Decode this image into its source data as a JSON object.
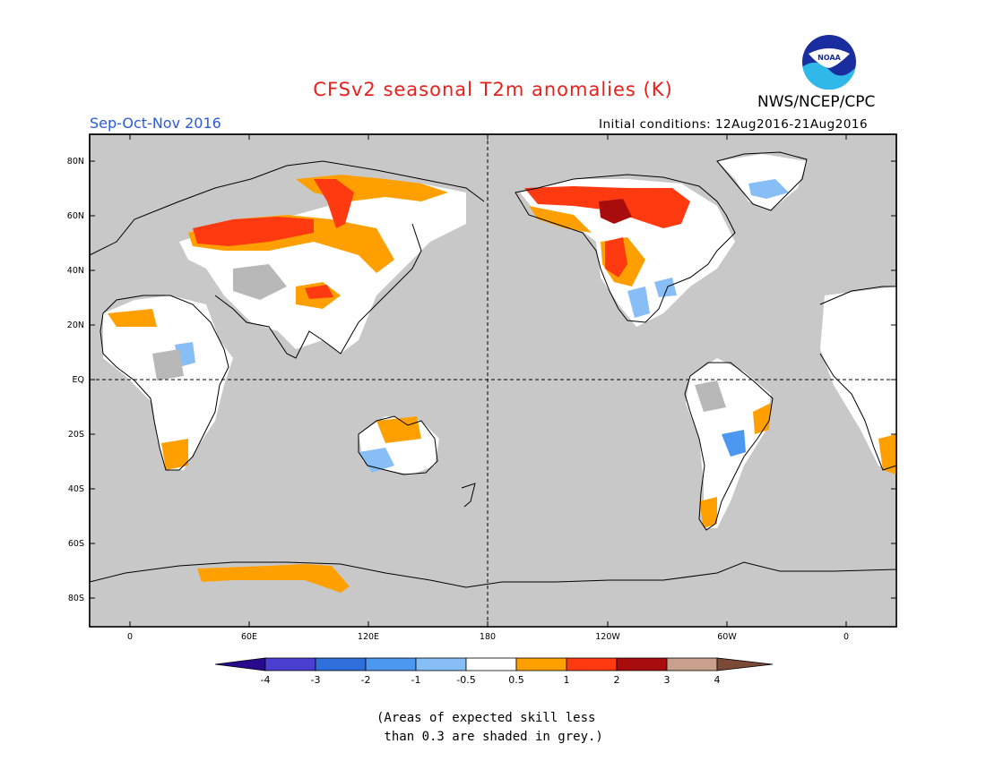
{
  "header": {
    "title": "CFSv2 seasonal T2m anomalies (K)",
    "season": "Sep-Oct-Nov 2016",
    "initial_conditions": "Initial conditions: 12Aug2016-21Aug2016",
    "agency": "NWS/NCEP/CPC",
    "logo_text": "NOAA"
  },
  "map": {
    "lat_labels": [
      "80N",
      "60N",
      "40N",
      "20N",
      "EQ",
      "20S",
      "40S",
      "60S",
      "80S"
    ],
    "lon_labels": [
      "0",
      "60E",
      "120E",
      "180",
      "120W",
      "60W",
      "0"
    ],
    "background_color": "#c8c8c8",
    "no_anomaly_color": "#ffffff"
  },
  "colorbar": {
    "labels": [
      "-4",
      "-3",
      "-2",
      "-1",
      "-0.5",
      "0.5",
      "1",
      "2",
      "3",
      "4"
    ],
    "colors": [
      "#2a0a8c",
      "#4a3fd0",
      "#2f6fdc",
      "#4c97f0",
      "#86bef5",
      "#ffffff",
      "#ff9f00",
      "#ff3a10",
      "#a80c0c",
      "#c8a08c",
      "#7a4a36"
    ]
  },
  "footnote": {
    "line1": "(Areas of expected skill less",
    "line2": " than 0.3 are shaded in grey.)"
  }
}
